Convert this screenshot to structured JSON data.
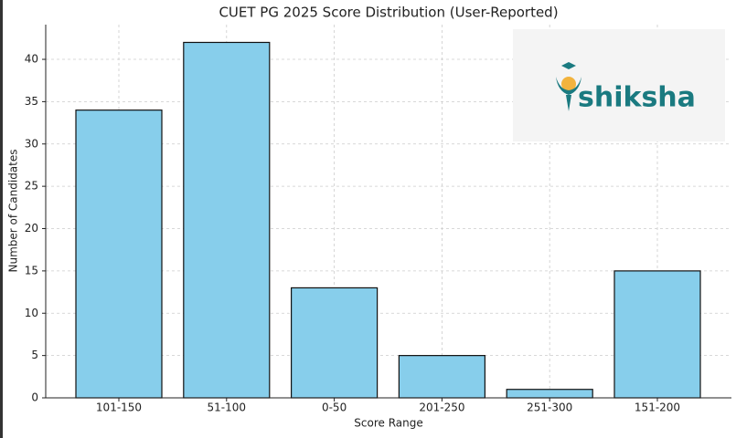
{
  "chart_data": {
    "type": "bar",
    "title": "CUET PG 2025 Score Distribution (User-Reported)",
    "x_label": "Score Range",
    "y_label": "Number of Candidates",
    "categories": [
      "101-150",
      "51-100",
      "0-50",
      "201-250",
      "251-300",
      "151-200"
    ],
    "values": [
      34,
      42,
      13,
      5,
      1,
      15
    ],
    "color": "#87ceeb",
    "ylim": [
      0,
      44.1
    ],
    "yticks": [
      0,
      5,
      10,
      15,
      20,
      25,
      30,
      35,
      40
    ],
    "grid": true,
    "logo": "shiksha"
  }
}
